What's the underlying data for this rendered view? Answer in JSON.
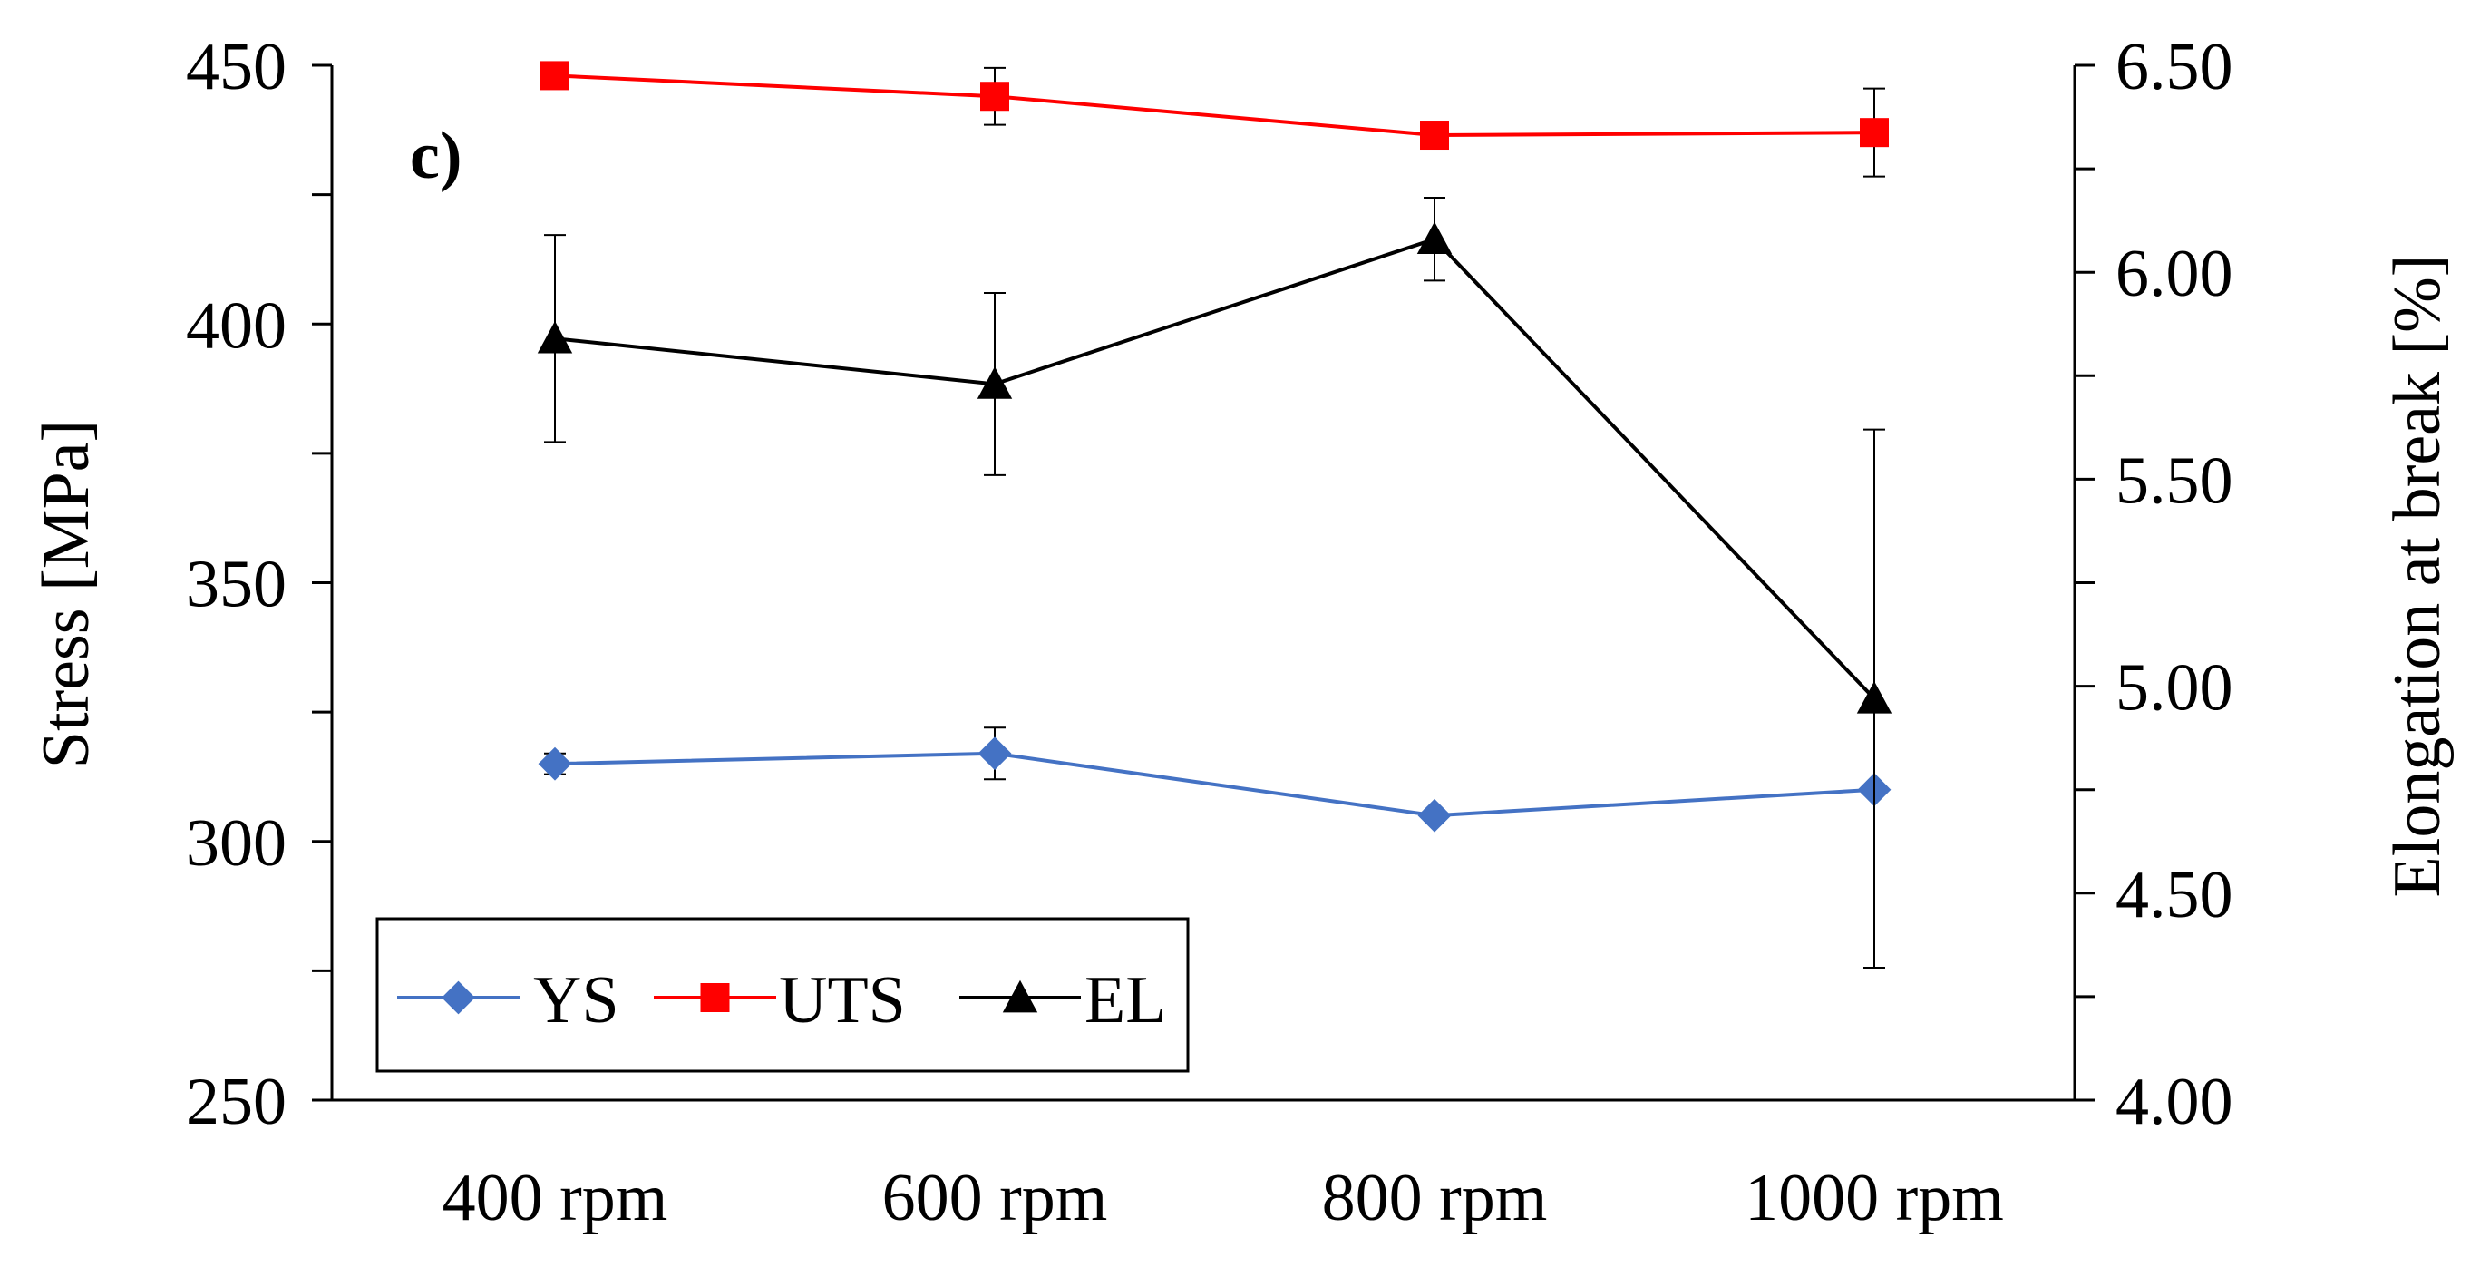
{
  "chart_data": {
    "type": "line",
    "panel_label": "c)",
    "categories": [
      "400 rpm",
      "600 rpm",
      "800 rpm",
      "1000 rpm"
    ],
    "ylabel": "Stress [MPa]",
    "y2label": "Elongation at break [%]",
    "ylim": [
      250,
      450
    ],
    "yticks": [
      250,
      300,
      350,
      400,
      450
    ],
    "ytick_labels": [
      "250",
      "300",
      "350",
      "400",
      "450"
    ],
    "y2lim": [
      4.0,
      6.5
    ],
    "y2ticks": [
      4.0,
      4.5,
      5.0,
      5.5,
      6.0,
      6.5
    ],
    "y2tick_labels": [
      "4.00",
      "4.50",
      "5.00",
      "5.50",
      "6.00",
      "6.50"
    ],
    "legend_position": "bottom-left",
    "series": [
      {
        "name": "YS",
        "axis": "left",
        "color": "#4472C4",
        "marker": "diamond",
        "values": [
          315,
          317,
          305,
          310
        ],
        "errors": [
          2,
          5,
          1,
          0
        ]
      },
      {
        "name": "UTS",
        "axis": "left",
        "color": "#FF0000",
        "marker": "square",
        "values": [
          448,
          444,
          436.5,
          437
        ],
        "errors": [
          0,
          5.5,
          0,
          8.5
        ]
      },
      {
        "name": "EL",
        "axis": "right",
        "color": "#000000",
        "marker": "triangle",
        "values": [
          5.84,
          5.73,
          6.08,
          4.97
        ],
        "errors": [
          0.25,
          0.22,
          0.1,
          0.65
        ]
      }
    ]
  }
}
